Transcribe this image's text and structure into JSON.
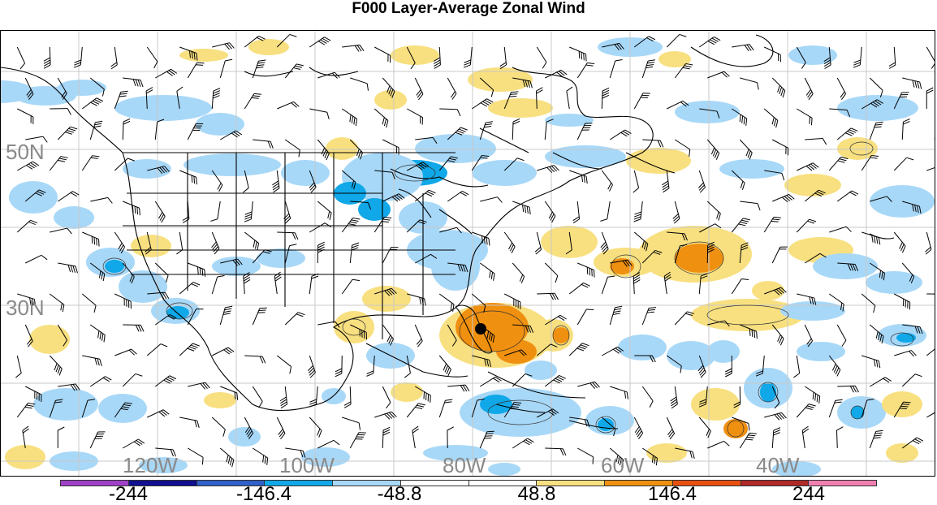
{
  "title": "F000 Layer-Average Zonal Wind",
  "map": {
    "latitude_labels": [
      "50N",
      "30N"
    ],
    "longitude_labels": [
      "120W",
      "100W",
      "80W",
      "60W",
      "40W"
    ],
    "grid_color": "#c8c8c8",
    "coastline_color": "#000000",
    "barb_color": "#000000"
  },
  "colorbar": {
    "colors": [
      "#a040c8",
      "#101090",
      "#3060c8",
      "#10a8e8",
      "#a8d8f8",
      "#ffffff",
      "#ffffff",
      "#f8e080",
      "#f09010",
      "#e85010",
      "#b02828",
      "#f080b0"
    ],
    "tick_labels": [
      "-244",
      "-146.4",
      "-48.8",
      "48.8",
      "146.4",
      "244"
    ]
  },
  "chart_data": {
    "type": "heatmap",
    "title": "F000 Layer-Average Zonal Wind",
    "variable": "Layer-Average Zonal Wind",
    "forecast_hour": "F000",
    "contour_levels": [
      -244,
      -195.2,
      -146.4,
      -97.6,
      -48.8,
      0,
      48.8,
      97.6,
      146.4,
      195.2,
      244
    ],
    "legend_ticks": [
      -244,
      -146.4,
      -48.8,
      48.8,
      146.4,
      244
    ],
    "latitude_ticks": [
      "50N",
      "30N"
    ],
    "longitude_ticks": [
      "120W",
      "100W",
      "80W",
      "60W",
      "40W"
    ],
    "legend_placement": "bottom"
  }
}
